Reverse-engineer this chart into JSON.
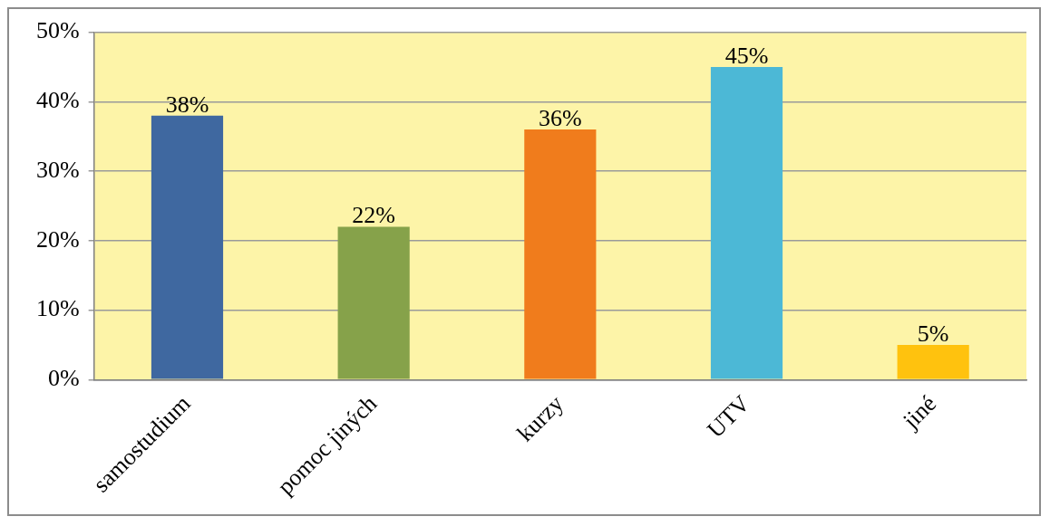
{
  "chart_data": {
    "type": "bar",
    "categories": [
      "samostudium",
      "pomoc jiných",
      "kurzy",
      "UTV",
      "jiné"
    ],
    "values": [
      38,
      22,
      36,
      45,
      5
    ],
    "colors": [
      "#3f68a0",
      "#86a24a",
      "#f07c1c",
      "#4cb8d6",
      "#ffc20e"
    ],
    "value_labels": [
      "38%",
      "22%",
      "36%",
      "45%",
      "5%"
    ],
    "ylim": [
      0,
      50
    ],
    "yticks": [
      {
        "value": 0,
        "label": "0%"
      },
      {
        "value": 10,
        "label": "10%"
      },
      {
        "value": 20,
        "label": "20%"
      },
      {
        "value": 30,
        "label": "30%"
      },
      {
        "value": 40,
        "label": "40%"
      },
      {
        "value": 50,
        "label": "50%"
      }
    ],
    "grid": "y",
    "legend": false
  }
}
